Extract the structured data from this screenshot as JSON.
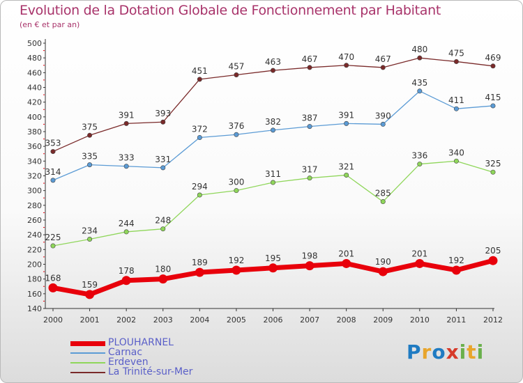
{
  "header": {
    "title": "Evolution de la Dotation Globale de Fonctionnement par Habitant",
    "subtitle": "(en € et par an)"
  },
  "logo": {
    "text": "Proxiti",
    "colors": [
      "#1f7bc2",
      "#e8a52c",
      "#1f7bc2",
      "#d63a2a",
      "#6ab04c",
      "#e8a52c",
      "#6ab04c"
    ]
  },
  "chart_data": {
    "type": "line",
    "title": "Evolution de la Dotation Globale de Fonctionnement par Habitant",
    "subtitle": "(en € et par an)",
    "xlabel": "",
    "ylabel": "",
    "x": [
      "2000",
      "2001",
      "2002",
      "2003",
      "2004",
      "2005",
      "2006",
      "2007",
      "2008",
      "2009",
      "2010",
      "2011",
      "2012"
    ],
    "ylim": [
      140,
      500
    ],
    "yticks": [
      140,
      160,
      180,
      200,
      220,
      240,
      260,
      280,
      300,
      320,
      340,
      360,
      380,
      400,
      420,
      440,
      460,
      480,
      500
    ],
    "grid": false,
    "legend_position": "bottom-left",
    "series": [
      {
        "name": "PLOUHARNEL",
        "color": "#e8000b",
        "emphasis": true,
        "values": [
          168,
          159,
          178,
          180,
          189,
          192,
          195,
          198,
          201,
          190,
          201,
          192,
          205
        ]
      },
      {
        "name": "Carnac",
        "color": "#5b9bd5",
        "emphasis": false,
        "values": [
          314,
          335,
          333,
          331,
          372,
          376,
          382,
          387,
          391,
          390,
          435,
          411,
          415
        ]
      },
      {
        "name": "Erdeven",
        "color": "#8fd65a",
        "emphasis": false,
        "values": [
          225,
          234,
          244,
          248,
          294,
          300,
          311,
          317,
          321,
          285,
          336,
          340,
          325
        ]
      },
      {
        "name": "La Trinité-sur-Mer",
        "color": "#7a2a2a",
        "emphasis": false,
        "values": [
          353,
          375,
          391,
          393,
          451,
          457,
          463,
          467,
          470,
          467,
          480,
          475,
          469
        ]
      }
    ]
  }
}
